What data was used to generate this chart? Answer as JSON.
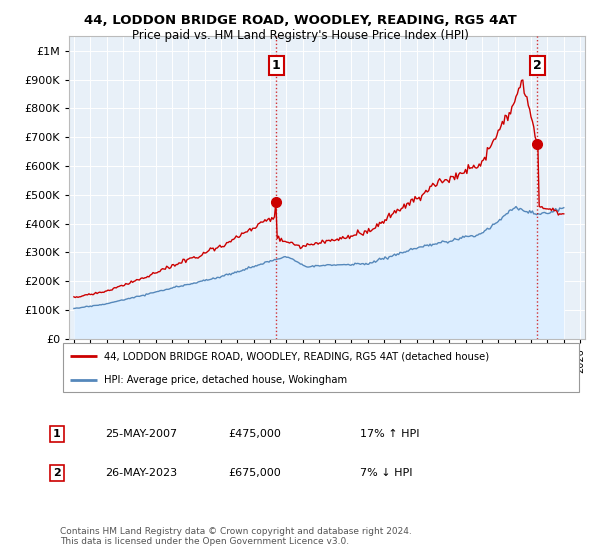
{
  "title": "44, LODDON BRIDGE ROAD, WOODLEY, READING, RG5 4AT",
  "subtitle": "Price paid vs. HM Land Registry's House Price Index (HPI)",
  "legend_line1": "44, LODDON BRIDGE ROAD, WOODLEY, READING, RG5 4AT (detached house)",
  "legend_line2": "HPI: Average price, detached house, Wokingham",
  "annotation1_label": "1",
  "annotation1_date": "25-MAY-2007",
  "annotation1_price": "£475,000",
  "annotation1_hpi": "17% ↑ HPI",
  "annotation2_label": "2",
  "annotation2_date": "26-MAY-2023",
  "annotation2_price": "£675,000",
  "annotation2_hpi": "7% ↓ HPI",
  "footer": "Contains HM Land Registry data © Crown copyright and database right 2024.\nThis data is licensed under the Open Government Licence v3.0.",
  "red_color": "#cc0000",
  "blue_color": "#5588bb",
  "blue_fill": "#ddeeff",
  "plot_bg": "#e8f0f8",
  "sale1_x": 2007.38,
  "sale1_y": 475000,
  "sale2_x": 2023.38,
  "sale2_y": 675000,
  "ylim": [
    0,
    1050000
  ],
  "xlim": [
    1994.7,
    2026.3
  ]
}
